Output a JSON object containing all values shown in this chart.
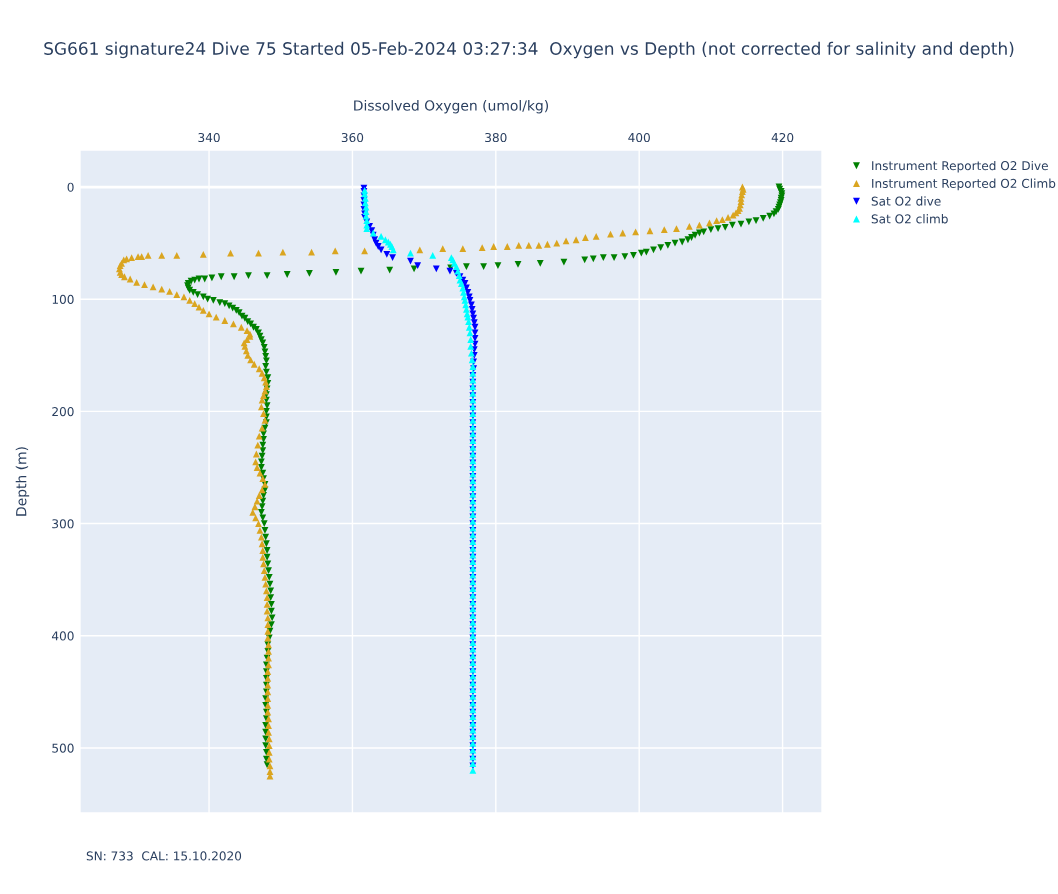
{
  "chart_data": {
    "type": "scatter",
    "title": "SG661 signature24 Dive 75 Started 05-Feb-2024 03:27:34  Oxygen vs Depth (not corrected for salinity and depth)",
    "xlabel": "Dissolved Oxygen (umol/kg)",
    "ylabel": "Depth (m)",
    "xlim": [
      322,
      425.5
    ],
    "ylim": [
      558,
      -33
    ],
    "xticks": [
      340,
      360,
      380,
      400,
      420
    ],
    "yticks": [
      0,
      100,
      200,
      300,
      400,
      500
    ],
    "grid": true,
    "legend": "top right",
    "annotations": [
      "SN: 733  CAL: 15.10.2020"
    ],
    "series": [
      {
        "name": "Instrument Reported O2 Dive",
        "color": "#008000",
        "marker": "triangle-down",
        "x": [
          419.5,
          419.6,
          419.8,
          419.9,
          419.9,
          419.8,
          419.8,
          419.7,
          419.6,
          419.5,
          419.4,
          419.1,
          418.8,
          418.2,
          417.3,
          416.3,
          415.3,
          414.2,
          413.0,
          412.0,
          411.0,
          410.0,
          409.0,
          408.4,
          407.8,
          407.3,
          406.8,
          406.0,
          405.0,
          404.0,
          403.0,
          402.0,
          401.0,
          400.3,
          399.2,
          398.0,
          396.5,
          395.0,
          393.6,
          392.4,
          389.5,
          386.2,
          383.1,
          380.3,
          378.3,
          375.9,
          373.7,
          368.6,
          365.2,
          361.2,
          357.7,
          354.0,
          350.9,
          348.1,
          345.5,
          343.5,
          341.7,
          340.4,
          339.4,
          338.6,
          338.0,
          337.5,
          337.1,
          337.0,
          337.1,
          337.3,
          337.8,
          338.4,
          339.2,
          339.8,
          340.6,
          341.5,
          342.2,
          342.8,
          343.3,
          343.8,
          344.2,
          344.6,
          345.0,
          345.4,
          345.8,
          346.2,
          346.6,
          346.9,
          347.1,
          347.3,
          347.5,
          347.7,
          347.8,
          347.9,
          348.0,
          347.9,
          348.0,
          348.2,
          348.2,
          348.1,
          348.0,
          348.0,
          348.1,
          348.0,
          348.0,
          348.0,
          347.8,
          347.6,
          347.6,
          347.5,
          347.5,
          347.4,
          347.3,
          347.3,
          347.5,
          347.6,
          347.8,
          347.8,
          347.6,
          347.5,
          347.4,
          347.3,
          347.5,
          347.7,
          347.8,
          347.9,
          348.0,
          348.1,
          348.1,
          348.2,
          348.3,
          348.4,
          348.5,
          348.6,
          348.6,
          348.7,
          348.7,
          348.8,
          348.7,
          348.5,
          348.4,
          348.2,
          348.2,
          348.1,
          348.0,
          348.0,
          348.0,
          348.0,
          348.0,
          347.9,
          347.9,
          348.0,
          348.0,
          347.9,
          347.9,
          347.9,
          347.9,
          348.0,
          348.0,
          348.1
        ],
        "values": [
          0,
          2,
          4,
          6,
          8,
          10,
          12,
          14,
          16,
          18,
          20,
          22,
          24,
          26,
          28,
          30,
          31,
          33,
          34,
          36,
          37,
          38,
          40,
          41,
          43,
          45,
          47,
          49,
          50,
          52,
          54,
          56,
          58,
          59,
          61,
          62,
          63,
          63,
          64,
          65,
          67,
          68,
          69,
          70,
          71,
          71,
          72,
          73,
          74,
          75,
          76,
          77,
          78,
          79,
          79,
          80,
          80,
          81,
          82,
          82,
          83,
          84,
          86,
          88,
          90,
          92,
          94,
          96,
          98,
          100,
          101,
          103,
          104,
          106,
          108,
          110,
          112,
          115,
          117,
          120,
          122,
          125,
          127,
          130,
          133,
          136,
          139,
          143,
          147,
          151,
          155,
          160,
          165,
          170,
          175,
          180,
          185,
          190,
          195,
          200,
          205,
          210,
          215,
          220,
          225,
          230,
          235,
          240,
          245,
          250,
          255,
          260,
          265,
          270,
          275,
          280,
          285,
          290,
          295,
          300,
          306,
          312,
          318,
          324,
          330,
          336,
          342,
          348,
          354,
          360,
          366,
          372,
          378,
          384,
          390,
          396,
          402,
          408,
          414,
          420,
          426,
          432,
          438,
          444,
          450,
          456,
          462,
          468,
          474,
          480,
          486,
          492,
          498,
          504,
          510,
          515
        ]
      },
      {
        "name": "Instrument Reported O2 Climb",
        "color": "#daa520",
        "marker": "triangle",
        "x": [
          414.4,
          414.5,
          414.4,
          414.3,
          414.2,
          414.2,
          414.1,
          414.0,
          413.8,
          413.5,
          413.1,
          412.4,
          411.6,
          410.8,
          409.8,
          408.4,
          407.0,
          405.2,
          403.5,
          401.5,
          399.5,
          397.7,
          396.0,
          394.0,
          392.5,
          391.2,
          389.8,
          388.5,
          387.2,
          386.0,
          384.6,
          383.2,
          381.6,
          379.7,
          378.1,
          375.4,
          372.6,
          369.4,
          361.7,
          357.6,
          354.3,
          350.3,
          346.9,
          343.0,
          339.2,
          335.5,
          333.4,
          331.5,
          330.6,
          330.1,
          329.2,
          328.5,
          328.1,
          327.8,
          327.6,
          327.5,
          327.6,
          327.8,
          328.2,
          329.0,
          329.9,
          331.0,
          332.2,
          333.4,
          334.5,
          335.5,
          336.5,
          337.3,
          338.0,
          338.6,
          339.2,
          340.0,
          341.0,
          342.2,
          343.4,
          344.5,
          345.3,
          345.7,
          345.7,
          345.3,
          344.9,
          345.0,
          345.2,
          345.4,
          345.8,
          346.3,
          347.0,
          347.4,
          347.7,
          347.9,
          348.0,
          347.8,
          347.6,
          347.4,
          347.3,
          347.6,
          347.8,
          347.4,
          347.0,
          346.8,
          346.6,
          346.5,
          346.7,
          347.1,
          347.5,
          347.8,
          347.4,
          347.0,
          346.7,
          346.4,
          346.1,
          346.5,
          346.9,
          347.1,
          347.3,
          347.4,
          347.5,
          347.5,
          347.6,
          347.7,
          347.8,
          347.9,
          348.0,
          348.1,
          348.1,
          348.1,
          348.2,
          348.2,
          348.2,
          348.2,
          348.3,
          348.3,
          348.3,
          348.3,
          348.2,
          348.2,
          348.2,
          348.2,
          348.2,
          348.2,
          348.2,
          348.3,
          348.3,
          348.3,
          348.4,
          348.4,
          348.4,
          348.4,
          348.5,
          348.5,
          348.5
        ],
        "values": [
          0,
          2,
          4,
          7,
          10,
          13,
          16,
          19,
          21,
          23,
          25,
          27,
          29,
          30,
          32,
          34,
          35,
          37,
          38,
          39,
          40,
          41,
          42,
          44,
          45,
          47,
          48,
          50,
          51,
          52,
          52,
          52,
          53,
          53,
          54,
          55,
          55,
          56,
          57,
          57,
          58,
          58,
          59,
          59,
          60,
          61,
          61,
          61,
          62,
          62,
          63,
          64,
          65,
          68,
          70,
          73,
          76,
          78,
          80,
          82,
          85,
          87,
          89,
          91,
          93,
          96,
          98,
          101,
          104,
          107,
          110,
          113,
          116,
          119,
          122,
          125,
          128,
          131,
          133,
          136,
          139,
          142,
          146,
          150,
          154,
          158,
          162,
          166,
          170,
          174,
          178,
          182,
          186,
          190,
          196,
          202,
          208,
          215,
          222,
          230,
          238,
          245,
          250,
          255,
          260,
          265,
          270,
          275,
          280,
          285,
          290,
          295,
          300,
          306,
          312,
          318,
          324,
          330,
          336,
          342,
          348,
          354,
          360,
          366,
          372,
          378,
          384,
          390,
          396,
          402,
          408,
          414,
          420,
          426,
          432,
          438,
          444,
          450,
          456,
          462,
          468,
          474,
          480,
          486,
          492,
          498,
          504,
          510,
          516,
          521,
          525
        ]
      },
      {
        "name": "Sat O2 dive",
        "color": "#0000ff",
        "marker": "triangle-down",
        "x": [
          361.6,
          361.6,
          361.6,
          361.6,
          361.6,
          361.6,
          361.7,
          361.7,
          362.0,
          362.4,
          362.7,
          362.9,
          363.1,
          363.3,
          363.6,
          364.0,
          364.8,
          365.6,
          368.1,
          369.1,
          371.7,
          373.6,
          374.5,
          375.0,
          375.4,
          375.7,
          375.9,
          376.1,
          376.3,
          376.4,
          376.6,
          376.7,
          376.8,
          376.9,
          377.0,
          377.1,
          377.1,
          377.1,
          377.1,
          377.0,
          377.0,
          376.9,
          376.9,
          376.8,
          376.8,
          376.8,
          376.8,
          376.8,
          376.8,
          376.8,
          376.8,
          376.8,
          376.8,
          376.8,
          376.8,
          376.8,
          376.8,
          376.8,
          376.8,
          376.8,
          376.8,
          376.8,
          376.8,
          376.8,
          376.8,
          376.8,
          376.8,
          376.8,
          376.8,
          376.8,
          376.8,
          376.8,
          376.8,
          376.8,
          376.8,
          376.8,
          376.8,
          376.8,
          376.8,
          376.8,
          376.8,
          376.8,
          376.8,
          376.8,
          376.8,
          376.8,
          376.8,
          376.8,
          376.8,
          376.8,
          376.8,
          376.8,
          376.8,
          376.8,
          376.8,
          376.8,
          376.8,
          376.8,
          376.8,
          376.8,
          376.8,
          376.8
        ],
        "values": [
          1,
          4,
          8,
          12,
          16,
          20,
          24,
          27,
          31,
          35,
          39,
          43,
          47,
          50,
          53,
          56,
          60,
          63,
          66,
          70,
          73,
          75,
          77,
          80,
          83,
          86,
          90,
          94,
          98,
          101,
          105,
          109,
          113,
          117,
          121,
          125,
          130,
          135,
          140,
          145,
          150,
          156,
          162,
          168,
          174,
          180,
          186,
          192,
          198,
          204,
          210,
          216,
          222,
          228,
          234,
          240,
          246,
          252,
          258,
          264,
          270,
          276,
          282,
          288,
          294,
          300,
          306,
          312,
          318,
          324,
          330,
          336,
          342,
          348,
          354,
          360,
          366,
          372,
          378,
          384,
          390,
          396,
          402,
          408,
          414,
          420,
          426,
          432,
          438,
          444,
          450,
          456,
          462,
          468,
          474,
          480,
          486,
          492,
          498,
          504,
          510,
          516
        ]
      },
      {
        "name": "Sat O2 climb",
        "color": "#00ffff",
        "marker": "triangle",
        "x": [
          361.7,
          361.7,
          361.8,
          361.8,
          361.9,
          361.9,
          361.9,
          362.0,
          362.0,
          362.0,
          362.9,
          364.0,
          364.6,
          365.0,
          365.3,
          365.5,
          365.7,
          368.1,
          371.2,
          373.8,
          374.0,
          374.2,
          374.5,
          374.7,
          374.9,
          375.0,
          375.2,
          375.4,
          375.5,
          375.6,
          375.7,
          375.8,
          375.9,
          376.0,
          376.1,
          376.2,
          376.3,
          376.4,
          376.5,
          376.5,
          376.6,
          376.7,
          376.8,
          376.8,
          376.8,
          376.8,
          376.8,
          376.8,
          376.8,
          376.8,
          376.8,
          376.8,
          376.8,
          376.8,
          376.8,
          376.8,
          376.8,
          376.8,
          376.8,
          376.8,
          376.8,
          376.8,
          376.8,
          376.8,
          376.8,
          376.8,
          376.8,
          376.8,
          376.8,
          376.8,
          376.8,
          376.8,
          376.8,
          376.8,
          376.8,
          376.8,
          376.8,
          376.8,
          376.8,
          376.8,
          376.8,
          376.8,
          376.8,
          376.8,
          376.8,
          376.8,
          376.8,
          376.8,
          376.8,
          376.8,
          376.8,
          376.8,
          376.8,
          376.8,
          376.8,
          376.8,
          376.8,
          376.8,
          376.8,
          376.8,
          376.8,
          376.8,
          376.8
        ],
        "values": [
          3,
          6,
          10,
          14,
          18,
          22,
          26,
          30,
          34,
          37,
          41,
          44,
          47,
          49,
          51,
          53,
          56,
          59,
          61,
          63,
          65,
          68,
          71,
          75,
          79,
          83,
          86,
          90,
          94,
          98,
          101,
          105,
          109,
          113,
          116,
          120,
          125,
          130,
          136,
          142,
          148,
          154,
          160,
          166,
          172,
          178,
          184,
          190,
          196,
          202,
          208,
          214,
          220,
          226,
          232,
          238,
          244,
          250,
          256,
          262,
          268,
          274,
          280,
          286,
          292,
          298,
          304,
          310,
          316,
          322,
          328,
          334,
          340,
          346,
          352,
          358,
          364,
          370,
          376,
          382,
          388,
          394,
          400,
          406,
          412,
          418,
          424,
          430,
          436,
          442,
          448,
          454,
          460,
          466,
          472,
          478,
          484,
          490,
          496,
          502,
          508,
          514,
          520
        ]
      }
    ]
  }
}
